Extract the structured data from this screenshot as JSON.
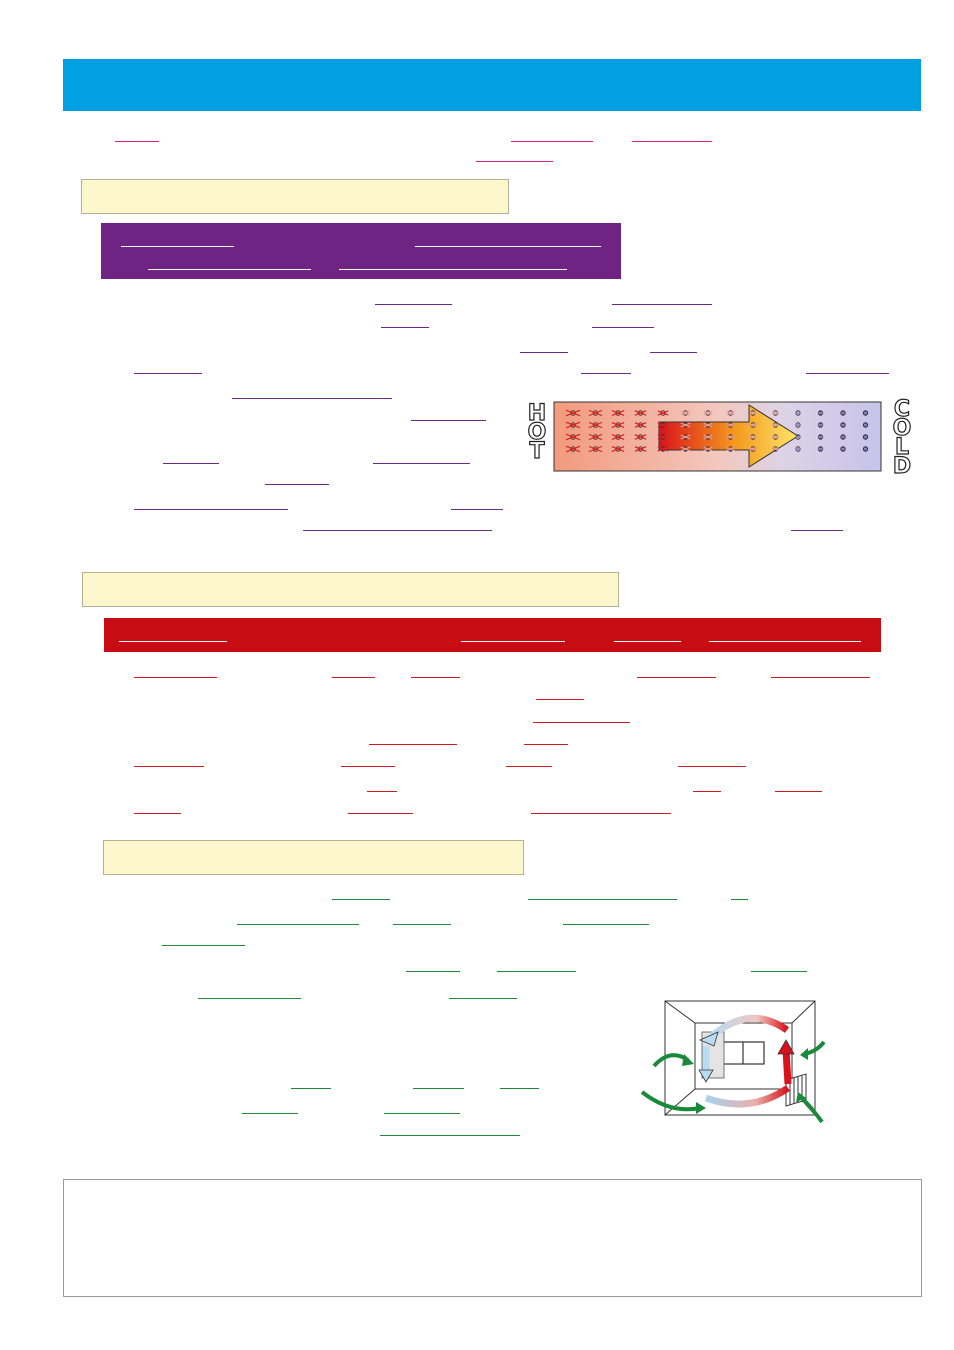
{
  "colors": {
    "header": "#00a0e2",
    "heading_box": "#fdf7cd",
    "conduction_banner": "#6f2382",
    "convection_banner": "#c80c14",
    "pink_blank": "#d6207a",
    "purple_blank": "#6a2b86",
    "red_blank": "#cc1b22",
    "green_blank": "#1f8a3c"
  },
  "conduction_diagram": {
    "hot_label": [
      "H",
      "O",
      "T"
    ],
    "cold_label": [
      "C",
      "O",
      "L",
      "D"
    ]
  },
  "icons": [
    "heat-conduction-bar-diagram",
    "room-convection-current-diagram"
  ]
}
